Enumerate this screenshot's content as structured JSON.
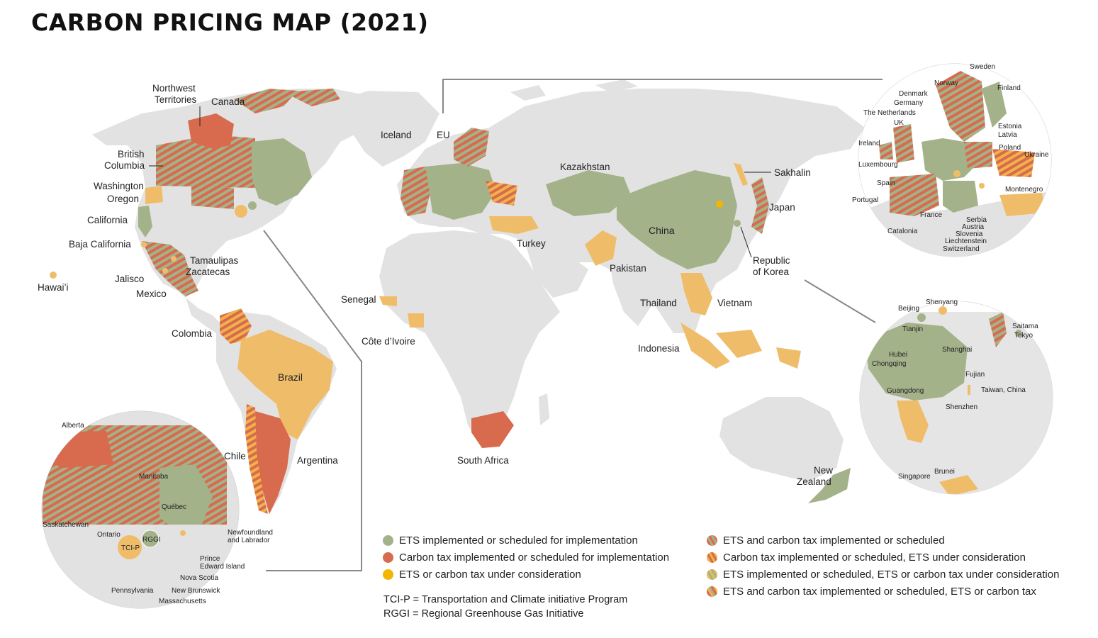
{
  "title": "CARBON PRICING MAP (2021)",
  "colors": {
    "ets": "#a4b28a",
    "tax": "#d86a4e",
    "consideration": "#f2b500",
    "tax_light": "#efbd6a",
    "land": "#e2e2e2",
    "stripe_a": "#a4b28a",
    "stripe_b": "#d86a4e"
  },
  "main_labels": {
    "northwest_territories": "Northwest Territories",
    "canada": "Canada",
    "british_columbia": "British Columbia",
    "washington": "Washington",
    "oregon": "Oregon",
    "california": "California",
    "baja_california": "Baja California",
    "tamaulipas": "Tamaulipas",
    "zacatecas": "Zacatecas",
    "jalisco": "Jalisco",
    "mexico": "Mexico",
    "hawaii": "Hawai’i",
    "colombia": "Colombia",
    "brazil": "Brazil",
    "chile": "Chile",
    "argentina": "Argentina",
    "iceland": "Iceland",
    "eu": "EU",
    "senegal": "Senegal",
    "cote_divoire": "Côte d’Ivoire",
    "south_africa": "South Africa",
    "turkey": "Turkey",
    "kazakhstan": "Kazakhstan",
    "china": "China",
    "pakistan": "Pakistan",
    "thailand": "Thailand",
    "vietnam": "Vietnam",
    "indonesia": "Indonesia",
    "sakhalin": "Sakhalin",
    "japan": "Japan",
    "republic_of_korea": "Republic of Korea",
    "new_zealand": "New Zealand"
  },
  "inset_europe_labels": [
    "Sweden",
    "Norway",
    "Finland",
    "Denmark",
    "Germany",
    "The Netherlands",
    "UK",
    "Estonia",
    "Latvia",
    "Ireland",
    "Poland",
    "Ukraine",
    "Luxembourg",
    "Spain",
    "Montenegro",
    "Portugal",
    "France",
    "Serbia",
    "Austria",
    "Catalonia",
    "Slovenia",
    "Liechtenstein",
    "Switzerland"
  ],
  "inset_asia_labels": [
    "Shenyang",
    "Beijing",
    "Tianjin",
    "Saitama",
    "Tokyo",
    "Shanghai",
    "Hubei",
    "Chongqing",
    "Fujian",
    "Guangdong",
    "Taiwan, China",
    "Shenzhen",
    "Brunei",
    "Singapore"
  ],
  "inset_namerica_labels": [
    "Alberta",
    "Manitoba",
    "Québec",
    "Saskatchewan",
    "Ontario",
    "RGGI",
    "TCI-P",
    "Newfoundland and Labrador",
    "Prince Edward Island",
    "Nova Scotia",
    "New Brunswick",
    "Pennsylvania",
    "Massachusetts"
  ],
  "legend_left": [
    {
      "label": "ETS implemented or scheduled for implementation",
      "color": "#a4b28a",
      "pattern": "solid"
    },
    {
      "label": "Carbon tax implemented or scheduled for implementation",
      "color": "#d86a4e",
      "pattern": "solid"
    },
    {
      "label": "ETS or carbon tax under consideration",
      "color": "#f2b500",
      "pattern": "solid"
    }
  ],
  "legend_right": [
    {
      "label": "ETS and carbon tax implemented or scheduled",
      "pattern": "stripe-green-red"
    },
    {
      "label": "Carbon tax implemented or scheduled, ETS under consideration",
      "pattern": "stripe-red-yellow"
    },
    {
      "label": "ETS implemented or scheduled, ETS or carbon tax under consideration",
      "pattern": "stripe-green-yellow"
    },
    {
      "label": "ETS and carbon tax implemented or scheduled, ETS or carbon tax",
      "pattern": "stripe-mixed"
    }
  ],
  "notes": {
    "tcip": "TCI-P = Transportation and Climate initiative Program",
    "rggi": "RGGI = Regional Greenhouse Gas Initiative"
  }
}
